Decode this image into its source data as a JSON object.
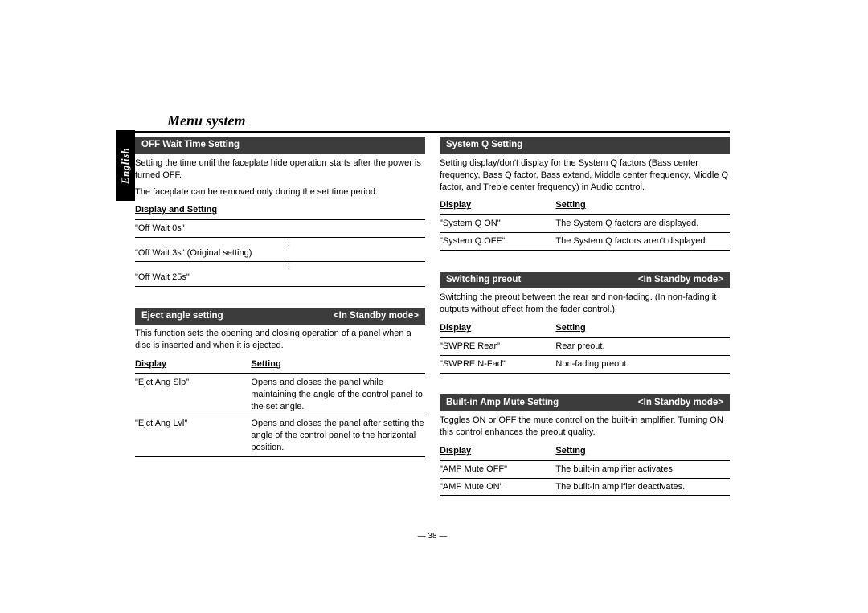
{
  "page_title": "Menu system",
  "language_tab": "English",
  "page_number": "— 38 —",
  "colors": {
    "header_bg": "#3c3c3c",
    "header_fg": "#ffffff",
    "rule": "#000000",
    "text": "#000000",
    "page_bg": "#ffffff"
  },
  "left": {
    "off_wait": {
      "title": "OFF Wait Time Setting",
      "mode": "",
      "desc1": "Setting the time until the faceplate hide operation starts after the power is turned OFF.",
      "desc2": "The faceplate can be removed only during the set time period.",
      "col_header": "Display and Setting",
      "rows": [
        "\"Off Wait 0s\"",
        "\"Off Wait 3s\" (Original setting)",
        "\"Off Wait 25s\""
      ],
      "has_ellipsis": true
    },
    "eject": {
      "title": "Eject angle setting",
      "mode": "<In Standby mode>",
      "desc": "This function sets the opening and closing operation of a panel when a disc is inserted and when it is ejected.",
      "h1": "Display",
      "h2": "Setting",
      "rows": [
        {
          "d": "\"Ejct Ang Slp\"",
          "s": "Opens and closes the panel while maintaining the angle of the control panel to the set angle."
        },
        {
          "d": "\"Ejct Ang Lvl\"",
          "s": "Opens and closes the panel after setting the angle of the control panel to the horizontal position."
        }
      ]
    }
  },
  "right": {
    "systemq": {
      "title": "System Q Setting",
      "mode": "",
      "desc": "Setting display/don't display for the System Q factors (Bass center frequency, Bass Q factor, Bass extend, Middle center frequency, Middle Q factor, and Treble center frequency) in Audio control.",
      "h1": "Display",
      "h2": "Setting",
      "rows": [
        {
          "d": "\"System Q ON\"",
          "s": "The System Q factors are displayed."
        },
        {
          "d": "\"System Q OFF\"",
          "s": "The System Q factors aren't displayed."
        }
      ]
    },
    "preout": {
      "title": "Switching preout",
      "mode": "<In Standby mode>",
      "desc": "Switching the preout between the rear and non-fading. (In non-fading it outputs without effect from the fader control.)",
      "h1": "Display",
      "h2": "Setting",
      "rows": [
        {
          "d": "\"SWPRE Rear\"",
          "s": "Rear preout."
        },
        {
          "d": "\"SWPRE N-Fad\"",
          "s": "Non-fading preout."
        }
      ]
    },
    "ampmute": {
      "title": "Built-in Amp Mute Setting",
      "mode": "<In Standby mode>",
      "desc": "Toggles ON or OFF the mute control on the built-in amplifier. Turning ON this control enhances the preout quality.",
      "h1": "Display",
      "h2": "Setting",
      "rows": [
        {
          "d": "\"AMP Mute OFF\"",
          "s": "The built-in amplifier activates."
        },
        {
          "d": "\"AMP Mute ON\"",
          "s": "The built-in amplifier deactivates."
        }
      ]
    }
  }
}
